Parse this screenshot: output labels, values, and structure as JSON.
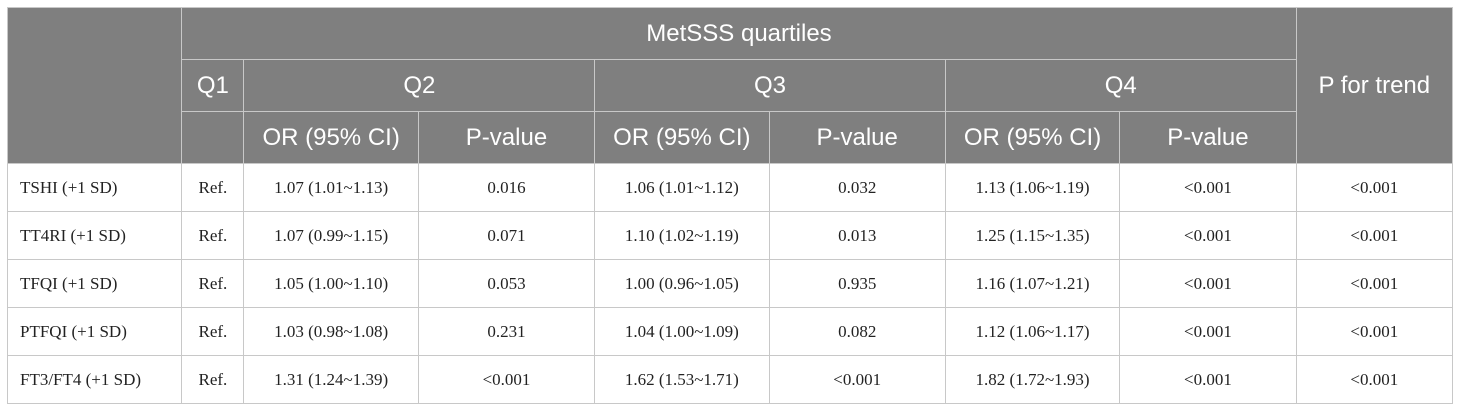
{
  "header": {
    "group_title": "MetSSS quartiles",
    "q1": "Q1",
    "q2": "Q2",
    "q3": "Q3",
    "q4": "Q4",
    "trend": "P for trend",
    "or_label": "OR (95% CI)",
    "p_label": "P-value"
  },
  "rows": [
    {
      "label": "TSHI (+1 SD)",
      "q1": "Ref.",
      "q2_or": "1.07 (1.01~1.13)",
      "q2_p": "0.016",
      "q3_or": "1.06 (1.01~1.12)",
      "q3_p": "0.032",
      "q4_or": "1.13 (1.06~1.19)",
      "q4_p": "<0.001",
      "trend": "<0.001"
    },
    {
      "label": "TT4RI (+1 SD)",
      "q1": "Ref.",
      "q2_or": "1.07 (0.99~1.15)",
      "q2_p": "0.071",
      "q3_or": "1.10 (1.02~1.19)",
      "q3_p": "0.013",
      "q4_or": "1.25 (1.15~1.35)",
      "q4_p": "<0.001",
      "trend": "<0.001"
    },
    {
      "label": "TFQI (+1 SD)",
      "q1": "Ref.",
      "q2_or": "1.05 (1.00~1.10)",
      "q2_p": "0.053",
      "q3_or": "1.00 (0.96~1.05)",
      "q3_p": "0.935",
      "q4_or": "1.16 (1.07~1.21)",
      "q4_p": "<0.001",
      "trend": "<0.001"
    },
    {
      "label": "PTFQI (+1 SD)",
      "q1": "Ref.",
      "q2_or": "1.03 (0.98~1.08)",
      "q2_p": "0.231",
      "q3_or": "1.04 (1.00~1.09)",
      "q3_p": "0.082",
      "q4_or": "1.12 (1.06~1.17)",
      "q4_p": "<0.001",
      "trend": "<0.001"
    },
    {
      "label": "FT3/FT4 (+1 SD)",
      "q1": "Ref.",
      "q2_or": "1.31 (1.24~1.39)",
      "q2_p": "<0.001",
      "q3_or": "1.62 (1.53~1.71)",
      "q3_p": "<0.001",
      "q4_or": "1.82 (1.72~1.93)",
      "q4_p": "<0.001",
      "trend": "<0.001"
    }
  ]
}
